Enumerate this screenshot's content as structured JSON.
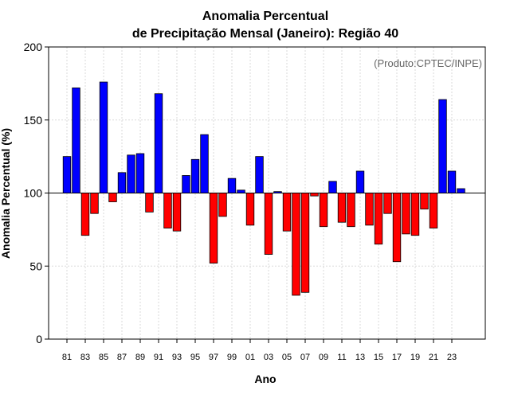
{
  "chart_data": {
    "type": "bar",
    "title_line1": "Anomalia Percentual",
    "title_line2": "de Precipitação Mensal (Janeiro): Região 40",
    "xlabel": "Ano",
    "ylabel": "Anomalia Percentual (%)",
    "credit": "(Produto:CPTEC/INPE)",
    "ylim": [
      0,
      200
    ],
    "yticks": [
      "0",
      "50",
      "100",
      "150",
      "200"
    ],
    "baseline": 100,
    "grid": true,
    "colors": {
      "above": "#0000ff",
      "below": "#ff0000",
      "outline": "#000000",
      "grid": "#d9d9d9"
    },
    "categories": [
      "81",
      "82",
      "83",
      "84",
      "85",
      "86",
      "87",
      "88",
      "89",
      "90",
      "91",
      "92",
      "93",
      "94",
      "95",
      "96",
      "97",
      "98",
      "99",
      "00",
      "01",
      "02",
      "03",
      "04",
      "05",
      "06",
      "07",
      "08",
      "09",
      "10",
      "11",
      "12",
      "13",
      "14",
      "15",
      "16",
      "17",
      "18",
      "19",
      "20",
      "21",
      "22",
      "23",
      "24"
    ],
    "xtick_labels": [
      "81",
      "83",
      "85",
      "87",
      "89",
      "91",
      "93",
      "95",
      "97",
      "99",
      "01",
      "03",
      "05",
      "07",
      "09",
      "11",
      "13",
      "15",
      "17",
      "19",
      "21",
      "23"
    ],
    "values": [
      125,
      172,
      71,
      86,
      176,
      94,
      114,
      126,
      127,
      87,
      168,
      76,
      74,
      112,
      123,
      140,
      52,
      84,
      110,
      102,
      78,
      125,
      58,
      101,
      74,
      30,
      32,
      98,
      77,
      108,
      80,
      77,
      115,
      78,
      65,
      86,
      53,
      72,
      71,
      89,
      76,
      164,
      115,
      103
    ]
  }
}
